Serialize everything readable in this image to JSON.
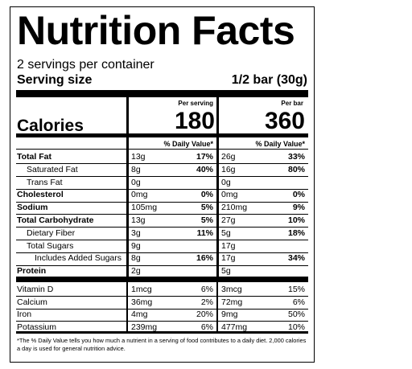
{
  "title": "Nutrition Facts",
  "servings_per_container": "2 servings per container",
  "serving_size_label": "Serving size",
  "serving_size_value": "1/2 bar (30g)",
  "columns": [
    {
      "header": "Per serving",
      "calories": "180"
    },
    {
      "header": "Per bar",
      "calories": "360"
    }
  ],
  "calories_label": "Calories",
  "dv_header": "% Daily Value*",
  "nutrients": [
    {
      "name": "Total Fat",
      "bold": true,
      "indent": 0,
      "c1_amt": "13g",
      "c1_dv": "17%",
      "c2_amt": "26g",
      "c2_dv": "33%"
    },
    {
      "name": "Saturated Fat",
      "bold": false,
      "indent": 1,
      "c1_amt": "8g",
      "c1_dv": "40%",
      "c2_amt": "16g",
      "c2_dv": "80%"
    },
    {
      "name": "Trans Fat",
      "bold": false,
      "indent": 1,
      "c1_amt": "0g",
      "c1_dv": "",
      "c2_amt": "0g",
      "c2_dv": ""
    },
    {
      "name": "Cholesterol",
      "bold": true,
      "indent": 0,
      "c1_amt": "0mg",
      "c1_dv": "0%",
      "c2_amt": "0mg",
      "c2_dv": "0%"
    },
    {
      "name": "Sodium",
      "bold": true,
      "indent": 0,
      "c1_amt": "105mg",
      "c1_dv": "5%",
      "c2_amt": "210mg",
      "c2_dv": "9%"
    },
    {
      "name": "Total Carbohydrate",
      "bold": true,
      "indent": 0,
      "c1_amt": "13g",
      "c1_dv": "5%",
      "c2_amt": "27g",
      "c2_dv": "10%"
    },
    {
      "name": "Dietary Fiber",
      "bold": false,
      "indent": 1,
      "c1_amt": "3g",
      "c1_dv": "11%",
      "c2_amt": "5g",
      "c2_dv": "18%"
    },
    {
      "name": "Total Sugars",
      "bold": false,
      "indent": 1,
      "c1_amt": "9g",
      "c1_dv": "",
      "c2_amt": "17g",
      "c2_dv": ""
    },
    {
      "name": "Includes Added Sugars",
      "bold": false,
      "indent": 2,
      "c1_amt": "8g",
      "c1_dv": "16%",
      "c2_amt": "17g",
      "c2_dv": "34%"
    },
    {
      "name": "Protein",
      "bold": true,
      "indent": 0,
      "c1_amt": "2g",
      "c1_dv": "",
      "c2_amt": "5g",
      "c2_dv": ""
    }
  ],
  "vitamins": [
    {
      "name": "Vitamin D",
      "c1_amt": "1mcg",
      "c1_dv": "6%",
      "c2_amt": "3mcg",
      "c2_dv": "15%"
    },
    {
      "name": "Calcium",
      "c1_amt": "36mg",
      "c1_dv": "2%",
      "c2_amt": "72mg",
      "c2_dv": "6%"
    },
    {
      "name": "Iron",
      "c1_amt": "4mg",
      "c1_dv": "20%",
      "c2_amt": "9mg",
      "c2_dv": "50%"
    },
    {
      "name": "Potassium",
      "c1_amt": "239mg",
      "c1_dv": "6%",
      "c2_amt": "477mg",
      "c2_dv": "10%"
    }
  ],
  "footnote": "*The % Daily Value tells you how much a nutrient in a serving of food contributes to a daily diet. 2,000 calories a day is used for general nutrition advice."
}
